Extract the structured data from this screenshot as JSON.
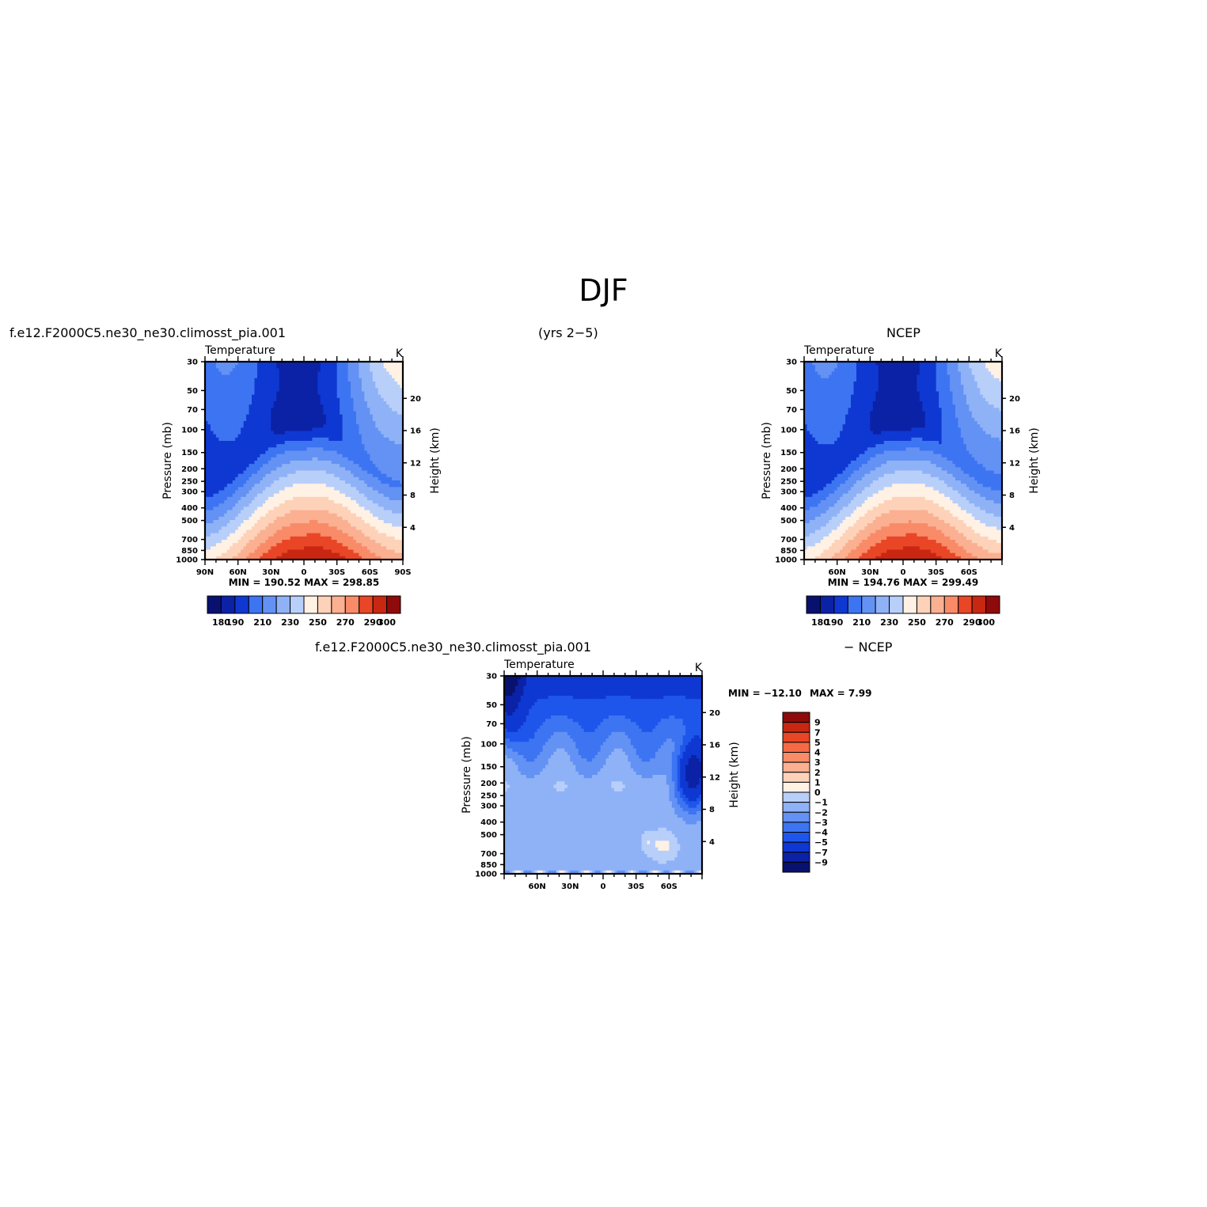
{
  "figure": {
    "title": "DJF",
    "left_title": "f.e12.F2000C5.ne30_ne30.climosst_pia.001",
    "center_title": "(yrs 2−5)",
    "right_title": "NCEP",
    "bottom_left_title": "f.e12.F2000C5.ne30_ne30.climosst_pia.001",
    "bottom_right_title": "− NCEP"
  },
  "chart_data": [
    {
      "type": "heatmap",
      "id": "model",
      "title": "Temperature",
      "units": "K",
      "ylabel": "Pressure (mb)",
      "ylabel_right": "Height (km)",
      "xlim": [
        -90,
        90
      ],
      "x_ticks": [
        {
          "v": -90,
          "l": "90N"
        },
        {
          "v": -60,
          "l": "60N"
        },
        {
          "v": -30,
          "l": "30N"
        },
        {
          "v": 0,
          "l": "0"
        },
        {
          "v": 30,
          "l": "30S"
        },
        {
          "v": 60,
          "l": "60S"
        },
        {
          "v": 90,
          "l": "90S"
        }
      ],
      "pressure_levels": [
        30,
        50,
        70,
        100,
        150,
        200,
        250,
        300,
        400,
        500,
        700,
        850,
        1000
      ],
      "y_scale": "log",
      "height_ticks": [
        4,
        8,
        12,
        16,
        20
      ],
      "stats": "MIN =  190.52   MAX =  298.85",
      "colorbar": {
        "orientation": "horizontal",
        "levels": [
          180,
          190,
          200,
          210,
          220,
          230,
          240,
          250,
          260,
          270,
          280,
          290,
          300
        ],
        "labels": [
          "180",
          "190",
          "210",
          "230",
          "250",
          "270",
          "290",
          "300"
        ]
      },
      "field": {
        "tropopause_min": 195,
        "tropics_surface_max": 299,
        "polar_surface_n": 250,
        "polar_surface_s": 272,
        "warm_top_s": 232
      }
    },
    {
      "type": "heatmap",
      "id": "ncep",
      "title": "Temperature",
      "units": "K",
      "ylabel": "Pressure (mb)",
      "ylabel_right": "Height (km)",
      "xlim": [
        -90,
        90
      ],
      "x_ticks": [
        {
          "v": -60,
          "l": "60N"
        },
        {
          "v": -30,
          "l": "30N"
        },
        {
          "v": 0,
          "l": "0"
        },
        {
          "v": 30,
          "l": "30S"
        },
        {
          "v": 60,
          "l": "60S"
        }
      ],
      "pressure_levels": [
        30,
        50,
        70,
        100,
        150,
        200,
        250,
        300,
        400,
        500,
        700,
        850,
        1000
      ],
      "y_scale": "log",
      "height_ticks": [
        4,
        8,
        12,
        16,
        20
      ],
      "stats": "MIN =  194.76   MAX =  299.49",
      "colorbar": {
        "orientation": "horizontal",
        "levels": [
          180,
          190,
          200,
          210,
          220,
          230,
          240,
          250,
          260,
          270,
          280,
          290,
          300
        ],
        "labels": [
          "180",
          "190",
          "210",
          "230",
          "250",
          "270",
          "290",
          "300"
        ]
      },
      "field": {
        "tropopause_min": 196,
        "tropics_surface_max": 299,
        "polar_surface_n": 252,
        "polar_surface_s": 270,
        "warm_top_s": 235
      }
    },
    {
      "type": "heatmap",
      "id": "diff",
      "title": "Temperature",
      "units": "K",
      "ylabel": "Pressure (mb)",
      "ylabel_right": "Height (km)",
      "xlim": [
        -90,
        90
      ],
      "x_ticks": [
        {
          "v": -60,
          "l": "60N"
        },
        {
          "v": -30,
          "l": "30N"
        },
        {
          "v": 0,
          "l": "0"
        },
        {
          "v": 30,
          "l": "30S"
        },
        {
          "v": 60,
          "l": "60S"
        }
      ],
      "pressure_levels": [
        30,
        50,
        70,
        100,
        150,
        200,
        250,
        300,
        400,
        500,
        700,
        850,
        1000
      ],
      "y_scale": "log",
      "height_ticks": [
        4,
        8,
        12,
        16,
        20
      ],
      "stats_min_label": "MIN =  −12.10",
      "stats_max_label": "MAX =     7.99",
      "colorbar": {
        "orientation": "vertical",
        "levels": [
          -9,
          -7,
          -5,
          -4,
          -3,
          -2,
          -1,
          0,
          1,
          2,
          3,
          4,
          5,
          7,
          9
        ],
        "labels": [
          "9",
          "7",
          "5",
          "4",
          "3",
          "2",
          "1",
          "0",
          "−1",
          "−2",
          "−3",
          "−4",
          "−5",
          "−7",
          "−9"
        ]
      }
    }
  ],
  "colors": {
    "palette": [
      "#08126e",
      "#0b22a6",
      "#0f38d2",
      "#1e56ec",
      "#3d74f2",
      "#6392f4",
      "#8fb2f7",
      "#b8cffa",
      "#dce8fc",
      "#fff1e4",
      "#fdd2b9",
      "#fbb092",
      "#f98b68",
      "#f56a45",
      "#e84626",
      "#c82712",
      "#8f0a0a"
    ]
  }
}
